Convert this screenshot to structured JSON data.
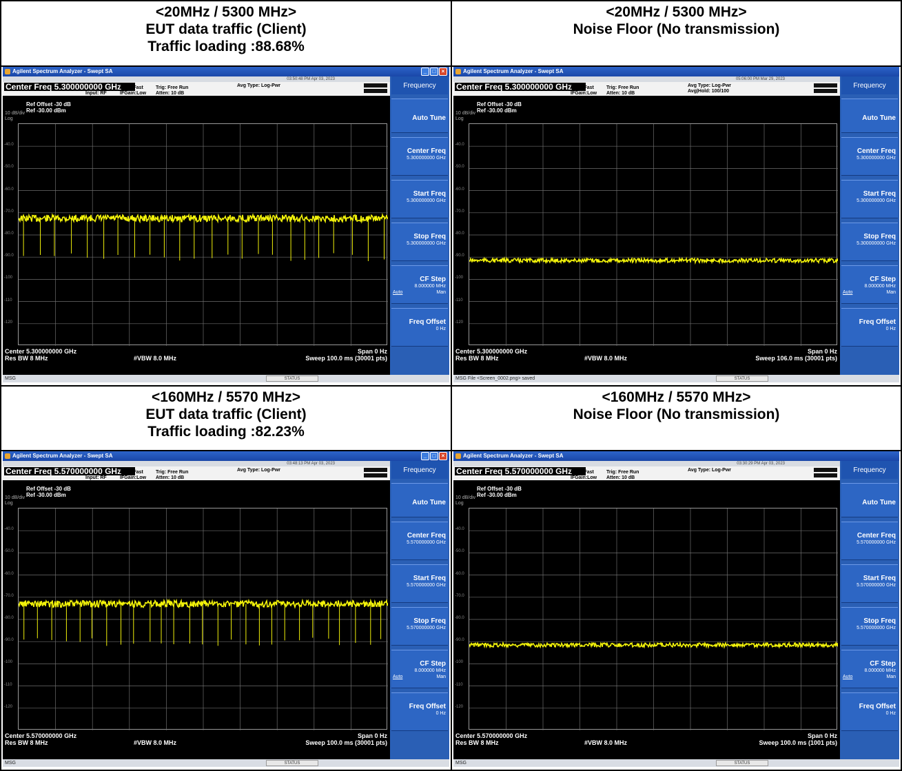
{
  "panels": [
    {
      "title_lines": [
        "<20MHz / 5300 MHz>",
        "EUT data traffic (Client)",
        "Traffic loading :88.68%"
      ],
      "window_title": "Agilent Spectrum Analyzer - Swept SA",
      "timestamp": "03:50:48 PM Apr 03, 2023",
      "center_freq": "Center Freq  5.300000000 GHz",
      "input": "Input: RF",
      "pno": "PNO: Fast",
      "ifgain": "IFGain:Low",
      "trig": "Trig: Free Run",
      "atten": "Atten: 10 dB",
      "avg_type": "Avg Type: Log-Pwr",
      "avg_hold": "",
      "ref_offset": "Ref Offset -30 dB",
      "ref_level": "Ref -30.00 dBm",
      "div": "10 dB/div",
      "scale": "Log",
      "center_label": "Center 5.300000000 GHz",
      "res_bw": "Res BW 8 MHz",
      "vbw": "#VBW 8.0 MHz",
      "span": "Span 0 Hz",
      "sweep": "Sweep  100.0 ms (30001 pts)",
      "msg": "MSG",
      "status": "STATUS",
      "softkeys": {
        "header": "Frequency",
        "auto_tune": "Auto Tune",
        "center_freq": "Center Freq",
        "center_val": "5.300000000 GHz",
        "start_freq": "Start Freq",
        "start_val": "5.300000000 GHz",
        "stop_freq": "Stop Freq",
        "stop_val": "5.300000000 GHz",
        "cf_step": "CF Step",
        "cf_step_val": "8.000000 MHz",
        "auto": "Auto",
        "man": "Man",
        "freq_offset": "Freq Offset",
        "freq_offset_val": "0 Hz"
      },
      "trace_level_dbm": -72.5,
      "has_dips": true
    },
    {
      "title_lines": [
        "<20MHz / 5300 MHz>",
        "Noise Floor (No transmission)"
      ],
      "window_title": "Agilent Spectrum Analyzer - Swept SA",
      "timestamp": "05:06:00 PM Mar 29, 2023",
      "center_freq": "Center Freq 5.300000000 GHz",
      "input": "",
      "pno": "PNO: Fast",
      "ifgain": "IFGain:Low",
      "trig": "Trig: Free Run",
      "atten": "Atten: 10 dB",
      "avg_type": "Avg Type: Log-Pwr",
      "avg_hold": "Avg|Hold: 100/100",
      "ref_offset": "Ref Offset -30 dB",
      "ref_level": "Ref -30.00 dBm",
      "div": "10 dB/div",
      "scale": "Log",
      "center_label": "Center 5.300000000 GHz",
      "res_bw": "Res BW 8 MHz",
      "vbw": "#VBW 8.0 MHz",
      "span": "Span 0 Hz",
      "sweep": "Sweep  106.0 ms (30001 pts)",
      "msg": "MSG  File <Screen_0002.png> saved",
      "status": "STATUS",
      "softkeys": {
        "header": "Frequency",
        "auto_tune": "Auto Tune",
        "center_freq": "Center Freq",
        "center_val": "5.300000000 GHz",
        "start_freq": "Start Freq",
        "start_val": "5.300000000 GHz",
        "stop_freq": "Stop Freq",
        "stop_val": "5.300000000 GHz",
        "cf_step": "CF Step",
        "cf_step_val": "8.000000 MHz",
        "auto": "Auto",
        "man": "Man",
        "freq_offset": "Freq Offset",
        "freq_offset_val": "0 Hz"
      },
      "trace_level_dbm": -91.5,
      "has_dips": false
    },
    {
      "title_lines": [
        "<160MHz / 5570 MHz>",
        "EUT data traffic (Client)",
        "Traffic loading :82.23%"
      ],
      "window_title": "Agilent Spectrum Analyzer - Swept SA",
      "timestamp": "03:48:13 PM Apr 03, 2023",
      "center_freq": "Center Freq  5.570000000 GHz",
      "input": "Input: RF",
      "pno": "PNO: Fast",
      "ifgain": "IFGain:Low",
      "trig": "Trig: Free Run",
      "atten": "Atten: 10 dB",
      "avg_type": "Avg Type: Log-Pwr",
      "avg_hold": "",
      "ref_offset": "Ref Offset -30 dB",
      "ref_level": "Ref -30.00 dBm",
      "div": "10 dB/div",
      "scale": "Log",
      "center_label": "Center 5.570000000 GHz",
      "res_bw": "Res BW 8 MHz",
      "vbw": "#VBW 8.0 MHz",
      "span": "Span 0 Hz",
      "sweep": "Sweep  100.0 ms (30001 pts)",
      "msg": "MSG",
      "status": "STATUS",
      "softkeys": {
        "header": "Frequency",
        "auto_tune": "Auto Tune",
        "center_freq": "Center Freq",
        "center_val": "5.570000000 GHz",
        "start_freq": "Start Freq",
        "start_val": "5.570000000 GHz",
        "stop_freq": "Stop Freq",
        "stop_val": "5.570000000 GHz",
        "cf_step": "CF Step",
        "cf_step_val": "8.000000 MHz",
        "auto": "Auto",
        "man": "Man",
        "freq_offset": "Freq Offset",
        "freq_offset_val": "0 Hz"
      },
      "trace_level_dbm": -73,
      "has_dips": true
    },
    {
      "title_lines": [
        "<160MHz / 5570 MHz>",
        "Noise Floor (No transmission)"
      ],
      "window_title": "Agilent Spectrum Analyzer - Swept SA",
      "timestamp": "03:30:29 PM Apr 03, 2023",
      "center_freq": "Center Freq 5.570000000 GHz",
      "input": "",
      "pno": "PNO: Fast",
      "ifgain": "IFGain:Low",
      "trig": "Trig: Free Run",
      "atten": "Atten: 10 dB",
      "avg_type": "Avg Type: Log-Pwr",
      "avg_hold": "",
      "ref_offset": "Ref Offset -30 dB",
      "ref_level": "Ref -30.00 dBm",
      "div": "10 dB/div",
      "scale": "Log",
      "center_label": "Center 5.570000000 GHz",
      "res_bw": "Res BW 8 MHz",
      "vbw": "#VBW 8.0 MHz",
      "span": "Span 0 Hz",
      "sweep": "Sweep  100.0 ms (1001 pts)",
      "msg": "MSG",
      "status": "STATUS",
      "softkeys": {
        "header": "Frequency",
        "auto_tune": "Auto Tune",
        "center_freq": "Center Freq",
        "center_val": "5.570000000 GHz",
        "start_freq": "Start Freq",
        "start_val": "5.570000000 GHz",
        "stop_freq": "Stop Freq",
        "stop_val": "5.570000000 GHz",
        "cf_step": "CF Step",
        "cf_step_val": "8.000000 MHz",
        "auto": "Auto",
        "man": "Man",
        "freq_offset": "Freq Offset",
        "freq_offset_val": "0 Hz"
      },
      "trace_level_dbm": -91.5,
      "has_dips": false
    }
  ],
  "y_ticks": [
    "-40.0",
    "-50.0",
    "-60.0",
    "-70.0",
    "-80.0",
    "-90.0",
    "-100",
    "-110",
    "-120"
  ],
  "colors": {
    "trace": "#f2f20a",
    "grid": "#6e6e6e",
    "softkey": "#2d66c4"
  }
}
